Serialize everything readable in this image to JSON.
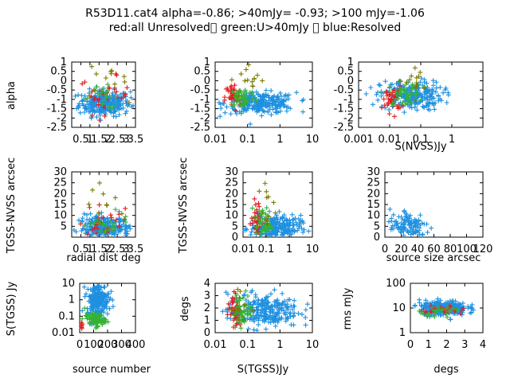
{
  "title": "R53D11.cat4 alpha=-0.86; >40mJy= -0.93; >100 mJy=-1.06",
  "subtitle": "red:all Unresolved\u0000 green:U>40mJy \u0000 blue:Resolved",
  "colors": {
    "red": "#e41a1c",
    "green": "#33b233",
    "blue": "#1e90e0",
    "olive": "#7a7a00"
  },
  "chart_data": [
    {
      "type": "scatter",
      "ylabel": "alpha",
      "xlabel": "",
      "xscale": "linear",
      "yscale": "linear",
      "xlim": [
        0,
        3.5
      ],
      "ylim": [
        -2.5,
        1
      ],
      "xticks": [
        0.5,
        1,
        1.5,
        2,
        2.5,
        3,
        3.5
      ],
      "xtick_labels": [
        "0.5",
        "1",
        "1.5",
        "2",
        "2.5",
        "3",
        "3.5"
      ],
      "yticks": [
        -2.5,
        -2,
        -1.5,
        -1,
        -0.5,
        0,
        0.5,
        1
      ],
      "ytick_labels": [
        "-2.5",
        "-2",
        "-1.5",
        "-1",
        "-0.5",
        "0",
        "0.5",
        "1"
      ],
      "series": [
        {
          "color": "blue",
          "clouds": [
            [
              1.8,
              -1.2,
              1.4,
              0.35,
              260
            ]
          ]
        },
        {
          "color": "red",
          "clouds": [
            [
              1.8,
              -0.8,
              1.4,
              0.5,
              30
            ]
          ]
        },
        {
          "color": "green",
          "clouds": [
            [
              1.8,
              -0.9,
              1.3,
              0.3,
              20
            ]
          ]
        },
        {
          "color": "olive",
          "clouds": [
            [
              1.8,
              0.1,
              1.2,
              0.5,
              14
            ]
          ]
        }
      ]
    },
    {
      "type": "scatter",
      "ylabel": "",
      "xlabel": "",
      "xscale": "log",
      "yscale": "linear",
      "xlim": [
        0.01,
        10
      ],
      "ylim": [
        -2.5,
        1
      ],
      "xticks": [
        0.01,
        0.1,
        1,
        10
      ],
      "xtick_labels": [
        "0.01",
        "0.1",
        "1",
        "10"
      ],
      "yticks": [
        -2.5,
        -2,
        -1.5,
        -1,
        -0.5,
        0,
        0.5,
        1
      ],
      "ytick_labels": [
        "-2.5",
        "-2",
        "-1.5",
        "-1",
        "-0.5",
        "0",
        "0.5",
        "1"
      ],
      "series": [
        {
          "color": "blue",
          "clouds": [
            [
              0.25,
              -1.2,
              0.55,
              0.28,
              260
            ]
          ]
        },
        {
          "color": "red",
          "clouds": [
            [
              0.035,
              -0.9,
              0.12,
              0.4,
              35
            ]
          ]
        },
        {
          "color": "green",
          "clouds": [
            [
              0.07,
              -0.9,
              0.2,
              0.3,
              50
            ]
          ]
        },
        {
          "color": "olive",
          "clouds": [
            [
              0.12,
              0.0,
              0.3,
              0.5,
              14
            ]
          ]
        }
      ]
    },
    {
      "type": "scatter",
      "ylabel": "",
      "xlabel": "S(NVSS)Jy",
      "xscale": "log",
      "yscale": "linear",
      "xlim": [
        0.001,
        10
      ],
      "ylim": [
        -2.5,
        1
      ],
      "xticks": [
        0.001,
        0.01,
        0.1,
        1
      ],
      "xtick_labels": [
        "0.001",
        "0.01",
        "0.1",
        "1"
      ],
      "yticks": [
        -2.5,
        -2,
        -1.5,
        -1,
        -0.5,
        0,
        0.5,
        1
      ],
      "ytick_labels": [
        "-2.5",
        "-2",
        "-1.5",
        "-1",
        "-0.5",
        "0",
        "0.5",
        "1"
      ],
      "series": [
        {
          "color": "blue",
          "clouds": [
            [
              0.05,
              -0.8,
              0.5,
              0.4,
              220
            ]
          ]
        },
        {
          "color": "red",
          "clouds": [
            [
              0.012,
              -1.0,
              0.15,
              0.35,
              35
            ]
          ]
        },
        {
          "color": "green",
          "clouds": [
            [
              0.03,
              -0.7,
              0.25,
              0.3,
              45
            ]
          ]
        },
        {
          "color": "olive",
          "clouds": [
            [
              0.06,
              0.0,
              0.35,
              0.45,
              14
            ]
          ]
        }
      ]
    },
    {
      "type": "scatter",
      "ylabel": "TGSS-NVSS arcsec",
      "xlabel": "radial dist deg",
      "xscale": "linear",
      "yscale": "linear",
      "xlim": [
        0,
        3.5
      ],
      "ylim": [
        0,
        30
      ],
      "xticks": [
        0.5,
        1,
        1.5,
        2,
        2.5,
        3,
        3.5
      ],
      "xtick_labels": [
        "0.5",
        "1",
        "1.5",
        "2",
        "2.5",
        "3",
        "3.5"
      ],
      "yticks": [
        5,
        10,
        15,
        20,
        25,
        30
      ],
      "ytick_labels": [
        "5",
        "10",
        "15",
        "20",
        "25",
        "30"
      ],
      "series": [
        {
          "color": "blue",
          "clouds": [
            [
              1.8,
              4,
              1.4,
              3,
              260
            ]
          ]
        },
        {
          "color": "red",
          "clouds": [
            [
              1.8,
              4,
              1.4,
              4,
              30
            ]
          ]
        },
        {
          "color": "green",
          "clouds": [
            [
              1.8,
              4,
              1.4,
              3,
              25
            ]
          ]
        },
        {
          "color": "olive",
          "clouds": [
            [
              1.8,
              14,
              1.2,
              8,
              14
            ]
          ]
        }
      ]
    },
    {
      "type": "scatter",
      "ylabel": "TGSS-NVSS arcsec",
      "xlabel": "",
      "xscale": "log",
      "yscale": "linear",
      "xlim": [
        0.01,
        10
      ],
      "ylim": [
        0,
        30
      ],
      "xticks": [
        0.01,
        0.1,
        1,
        10
      ],
      "xtick_labels": [
        "0.01",
        "0.1",
        "1",
        "10"
      ],
      "yticks": [
        0,
        5,
        10,
        15,
        20,
        25,
        30
      ],
      "ytick_labels": [
        "0",
        "5",
        "10",
        "15",
        "20",
        "25",
        "30"
      ],
      "series": [
        {
          "color": "blue",
          "clouds": [
            [
              0.25,
              4,
              0.55,
              3,
              260
            ]
          ]
        },
        {
          "color": "red",
          "clouds": [
            [
              0.04,
              7,
              0.12,
              5,
              35
            ]
          ]
        },
        {
          "color": "green",
          "clouds": [
            [
              0.07,
              6,
              0.18,
              4,
              50
            ]
          ]
        },
        {
          "color": "olive",
          "clouds": [
            [
              0.09,
              14,
              0.25,
              8,
              14
            ]
          ]
        }
      ]
    },
    {
      "type": "scatter",
      "ylabel": "",
      "xlabel": "source size arcsec",
      "xscale": "linear",
      "yscale": "linear",
      "xlim": [
        0,
        120
      ],
      "ylim": [
        0,
        30
      ],
      "xticks": [
        0,
        20,
        40,
        60,
        80,
        100,
        120
      ],
      "xtick_labels": [
        "0",
        "20",
        "40",
        "60",
        "80",
        "100",
        "120"
      ],
      "yticks": [
        0,
        5,
        10,
        15,
        20,
        25,
        30
      ],
      "ytick_labels": [
        "0",
        "5",
        "10",
        "15",
        "20",
        "25",
        "30"
      ],
      "series": [
        {
          "color": "blue",
          "clouds": [
            [
              30,
              5,
              25,
              4,
              120
            ]
          ]
        }
      ]
    },
    {
      "type": "scatter",
      "ylabel": "S(TGSS) Jy",
      "xlabel": "source number",
      "xscale": "linear",
      "yscale": "log",
      "xlim": [
        0,
        400
      ],
      "ylim": [
        0.01,
        10
      ],
      "xticks": [
        0,
        100,
        200,
        300,
        400
      ],
      "xtick_labels": [
        "0",
        "100",
        "200",
        "300",
        "400"
      ],
      "yticks": [
        0.01,
        0.1,
        1,
        10
      ],
      "ytick_labels": [
        "0.01",
        "0.1",
        "1",
        "10"
      ],
      "series": [
        {
          "color": "blue",
          "clouds": [
            [
              130,
              1,
              80,
              0.5,
              220
            ]
          ]
        },
        {
          "color": "red",
          "clouds": [
            [
              10,
              0.03,
              8,
              0.15,
              20
            ]
          ]
        },
        {
          "color": "green",
          "clouds": [
            [
              110,
              0.06,
              75,
              0.2,
              80
            ]
          ]
        }
      ]
    },
    {
      "type": "scatter",
      "ylabel": "degs",
      "xlabel": "S(TGSS)Jy",
      "xscale": "log",
      "yscale": "linear",
      "xlim": [
        0.01,
        10
      ],
      "ylim": [
        0,
        4
      ],
      "xticks": [
        0.01,
        0.1,
        1,
        10
      ],
      "xtick_labels": [
        "0.01",
        "0.1",
        "1",
        "10"
      ],
      "yticks": [
        0,
        1,
        2,
        3,
        4
      ],
      "ytick_labels": [
        "0",
        "1",
        "2",
        "3",
        "4"
      ],
      "series": [
        {
          "color": "blue",
          "clouds": [
            [
              0.3,
              1.8,
              0.55,
              0.7,
              260
            ]
          ]
        },
        {
          "color": "red",
          "clouds": [
            [
              0.04,
              1.8,
              0.1,
              0.7,
              35
            ]
          ]
        },
        {
          "color": "green",
          "clouds": [
            [
              0.07,
              1.8,
              0.15,
              0.7,
              50
            ]
          ]
        },
        {
          "color": "olive",
          "clouds": [
            [
              0.06,
              2.0,
              0.15,
              0.7,
              14
            ]
          ]
        }
      ]
    },
    {
      "type": "scatter",
      "ylabel": "rms mJy",
      "xlabel": "degs",
      "xscale": "linear",
      "yscale": "log",
      "xlim": [
        0,
        4
      ],
      "ylim": [
        1,
        100
      ],
      "xticks": [
        0,
        1,
        2,
        3,
        4
      ],
      "xtick_labels": [
        "0",
        "1",
        "2",
        "3",
        "4"
      ],
      "yticks": [
        1,
        10,
        100
      ],
      "ytick_labels": [
        "1",
        "10",
        "100"
      ],
      "series": [
        {
          "color": "blue",
          "clouds": [
            [
              1.8,
              10,
              1.3,
              0.15,
              260
            ]
          ]
        },
        {
          "color": "red",
          "clouds": [
            [
              1.8,
              8,
              1.3,
              0.1,
              30
            ]
          ]
        },
        {
          "color": "green",
          "clouds": [
            [
              1.8,
              8,
              1.3,
              0.1,
              25
            ]
          ]
        }
      ]
    }
  ]
}
